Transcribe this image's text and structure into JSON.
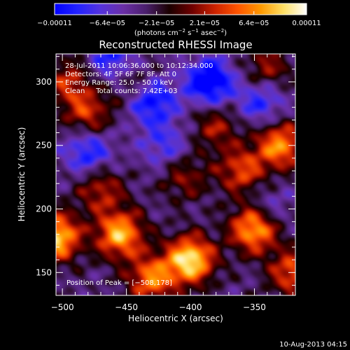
{
  "chart_data": {
    "type": "heatmap",
    "title": "Reconstructed RHESSI Image",
    "xlabel": "Heliocentric X (arcsec)",
    "ylabel": "Heliocentric Y (arcsec)",
    "xlim": [
      -505,
      -318
    ],
    "ylim": [
      132,
      322
    ],
    "x_ticks": [
      -500,
      -450,
      -400,
      -350
    ],
    "x_tick_labels": [
      "−500",
      "−450",
      "−400",
      "−350"
    ],
    "y_ticks": [
      150,
      200,
      250,
      300
    ],
    "y_tick_labels": [
      "150",
      "200",
      "250",
      "300"
    ],
    "colorbar": {
      "ticks": [
        -0.00011,
        -6.4e-05,
        -2.1e-05,
        2.1e-05,
        6.4e-05,
        0.00011
      ],
      "tick_labels": [
        "−0.00011",
        "−6.4e−05",
        "−2.1e−05",
        "2.1e−05",
        "6.4e−05",
        "0.00011"
      ],
      "vmin": -0.00011,
      "vmax": 0.00011,
      "units_prefix": "(photons cm",
      "units_exp1": "−2",
      "units_mid1": " s",
      "units_exp2": "−1",
      "units_mid2": " asec",
      "units_exp3": "−2",
      "units_suffix": ")",
      "colors": [
        "#0000ff",
        "#2222ff",
        "#5533dd",
        "#6a2fa6",
        "#4a1f6c",
        "#1a0000",
        "#6e0000",
        "#cc2200",
        "#ff5500",
        "#ff9900",
        "#ffe066",
        "#ffffff"
      ]
    },
    "annotations": {
      "line1": "28‑Jul‑2011 10:06:36.000 to 10:12:34.000",
      "line2": "Detectors: 4F 5F 6F 7F 8F, Att 0",
      "line3": "Energy Range: 25.0 – 50.0 keV",
      "line4": "Clean     Total counts: 7.42E+03",
      "peak": "Position of Peak = [−508,178]"
    },
    "hot_spots": [
      {
        "x": -400,
        "y": 160,
        "v": 1.0
      },
      {
        "x": -455,
        "y": 180,
        "v": 0.85
      },
      {
        "x": -350,
        "y": 185,
        "v": 0.9
      },
      {
        "x": -430,
        "y": 145,
        "v": 0.7
      },
      {
        "x": -505,
        "y": 178,
        "v": 0.95
      },
      {
        "x": -330,
        "y": 250,
        "v": 0.75
      },
      {
        "x": -360,
        "y": 230,
        "v": 0.55
      },
      {
        "x": -480,
        "y": 275,
        "v": 0.5
      },
      {
        "x": -380,
        "y": 265,
        "v": 0.4
      },
      {
        "x": -320,
        "y": 150,
        "v": 0.6
      },
      {
        "x": -470,
        "y": 215,
        "v": 0.45
      },
      {
        "x": -405,
        "y": 225,
        "v": 0.35
      },
      {
        "x": -495,
        "y": 300,
        "v": 0.45
      },
      {
        "x": -340,
        "y": 310,
        "v": 0.4
      },
      {
        "x": -445,
        "y": 300,
        "v": 0.3
      }
    ],
    "cold_spots": [
      {
        "x": -385,
        "y": 300,
        "v": -0.75
      },
      {
        "x": -430,
        "y": 285,
        "v": -0.6
      },
      {
        "x": -480,
        "y": 245,
        "v": -0.5
      },
      {
        "x": -345,
        "y": 285,
        "v": -0.45
      },
      {
        "x": -460,
        "y": 318,
        "v": -0.5
      },
      {
        "x": -420,
        "y": 250,
        "v": -0.35
      },
      {
        "x": -340,
        "y": 200,
        "v": -0.3
      }
    ]
  },
  "footer": {
    "timestamp": "10‑Aug‑2013 04:15"
  }
}
